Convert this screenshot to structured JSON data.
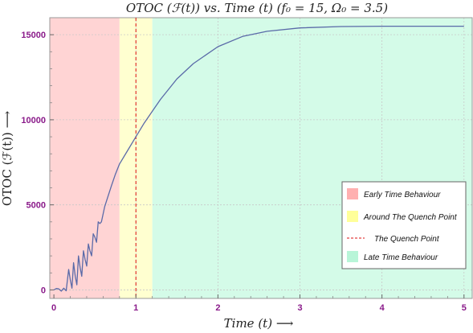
{
  "chart_data": {
    "type": "line",
    "title": "OTOC (ℱ(t)) vs. Time (t) (f₀ = 15, Ω₀ = 3.5)",
    "xlabel": "Time (t)  ⟶",
    "ylabel": "OTOC (ℱ(t))  ⟶",
    "xlim": [
      -0.05,
      5.1
    ],
    "ylim": [
      -500,
      16000
    ],
    "xticks": [
      0,
      1,
      2,
      3,
      4,
      5
    ],
    "yticks": [
      0,
      5000,
      10000,
      15000
    ],
    "xtick_labels": [
      "0",
      "1",
      "2",
      "3",
      "4",
      "5"
    ],
    "ytick_labels": [
      "0",
      "5000",
      "10000",
      "15000"
    ],
    "grid": true,
    "legend_placement": "right",
    "regions": [
      {
        "name": "Early Time Behaviour",
        "from": -0.05,
        "to": 0.8,
        "color": "#ffd4d4"
      },
      {
        "name": "Around The Quench Point",
        "from": 0.8,
        "to": 1.2,
        "color": "#ffffd0"
      },
      {
        "name": "Late Time Behaviour",
        "from": 1.2,
        "to": 5.1,
        "color": "#d4fbe8"
      }
    ],
    "quench_line": {
      "name": "The Quench Point",
      "x": 1.0,
      "color": "#dd1111"
    },
    "legend": [
      {
        "label": "Early Time Behaviour",
        "kind": "box",
        "color": "#ffb0b0"
      },
      {
        "label": "Around The Quench Point",
        "kind": "box",
        "color": "#ffff99"
      },
      {
        "label": "The Quench Point",
        "kind": "dash",
        "color": "#dd1111"
      },
      {
        "label": "Late Time Behaviour",
        "kind": "box",
        "color": "#b8f5d8"
      }
    ],
    "series": [
      {
        "color": "#5a6aa8",
        "points": [
          [
            0.0,
            0
          ],
          [
            0.03,
            80
          ],
          [
            0.06,
            60
          ],
          [
            0.09,
            -70
          ],
          [
            0.12,
            100
          ],
          [
            0.15,
            -50
          ],
          [
            0.18,
            1200
          ],
          [
            0.2,
            600
          ],
          [
            0.22,
            100
          ],
          [
            0.24,
            1600
          ],
          [
            0.26,
            800
          ],
          [
            0.28,
            300
          ],
          [
            0.3,
            2000
          ],
          [
            0.32,
            1300
          ],
          [
            0.34,
            800
          ],
          [
            0.36,
            2300
          ],
          [
            0.38,
            1800
          ],
          [
            0.4,
            1400
          ],
          [
            0.42,
            2700
          ],
          [
            0.44,
            2300
          ],
          [
            0.46,
            2000
          ],
          [
            0.48,
            3300
          ],
          [
            0.5,
            3100
          ],
          [
            0.52,
            2800
          ],
          [
            0.54,
            4000
          ],
          [
            0.56,
            3900
          ],
          [
            0.58,
            4000
          ],
          [
            0.62,
            4900
          ],
          [
            0.66,
            5500
          ],
          [
            0.7,
            6100
          ],
          [
            0.75,
            6800
          ],
          [
            0.8,
            7400
          ],
          [
            0.9,
            8200
          ],
          [
            1.0,
            9000
          ],
          [
            1.1,
            9800
          ],
          [
            1.2,
            10500
          ],
          [
            1.3,
            11200
          ],
          [
            1.5,
            12400
          ],
          [
            1.7,
            13300
          ],
          [
            2.0,
            14300
          ],
          [
            2.3,
            14900
          ],
          [
            2.6,
            15200
          ],
          [
            3.0,
            15400
          ],
          [
            3.5,
            15480
          ],
          [
            4.0,
            15500
          ],
          [
            4.5,
            15500
          ],
          [
            5.0,
            15500
          ]
        ]
      }
    ]
  }
}
